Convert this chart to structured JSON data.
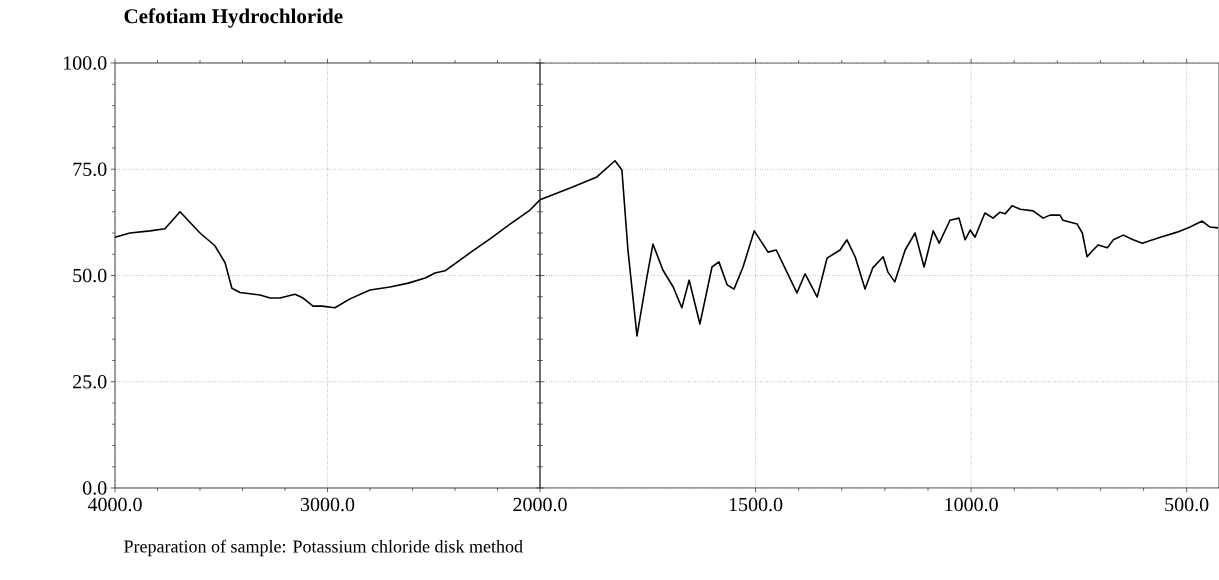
{
  "chart_data": [
    {
      "type": "line",
      "title": "Cefotiam Hydrochloride",
      "annotations": [
        "Preparation of sample: Potassium chloride disk method"
      ],
      "xlim": [
        4000,
        2000
      ],
      "xticks": [
        {
          "value": 4000,
          "label": "4000.0"
        },
        {
          "value": 3000,
          "label": "3000.0"
        },
        {
          "value": 2000,
          "label": "2000.0"
        }
      ],
      "ylim": [
        0,
        100
      ],
      "yticks": [
        {
          "value": 0,
          "label": "0.0"
        },
        {
          "value": 25,
          "label": "25.0"
        },
        {
          "value": 50,
          "label": "50.0"
        },
        {
          "value": 75,
          "label": "75.0"
        },
        {
          "value": 100,
          "label": "100.0"
        }
      ],
      "grid": true,
      "marker": "none",
      "line_style": "solid",
      "series": [
        {
          "color": "#000000",
          "x": [
            4000,
            3930,
            3835,
            3765,
            3694,
            3600,
            3530,
            3482,
            3450,
            3412,
            3318,
            3270,
            3224,
            3153,
            3115,
            3068,
            3026,
            2965,
            2894,
            2800,
            2706,
            2620,
            2540,
            2494,
            2447,
            2330,
            2235,
            2141,
            2047,
            2000
          ],
          "values": [
            59,
            60,
            60.5,
            61,
            65,
            60,
            57,
            53,
            47,
            46,
            45.4,
            44.7,
            44.7,
            45.6,
            44.7,
            42.8,
            42.8,
            42.4,
            44.5,
            46.6,
            47.3,
            48.2,
            49.4,
            50.6,
            51.1,
            55.3,
            58.6,
            62.1,
            65.4,
            67.8
          ]
        }
      ]
    },
    {
      "type": "line",
      "xlim": [
        2000,
        425
      ],
      "xticks": [
        {
          "value": 1500,
          "label": "1500.0"
        },
        {
          "value": 1000,
          "label": "1000.0"
        },
        {
          "value": 500,
          "label": "500.0"
        }
      ],
      "ylim": [
        0,
        100
      ],
      "yticks": [
        0,
        25,
        50,
        75,
        100
      ],
      "tick_labels": "x",
      "grid": true,
      "marker": "none",
      "line_style": "solid",
      "series": [
        {
          "color": "#000000",
          "x": [
            2000,
            1930,
            1868,
            1826,
            1810,
            1796,
            1775,
            1752,
            1738,
            1715,
            1691,
            1671,
            1654,
            1629,
            1601,
            1585,
            1566,
            1550,
            1529,
            1503,
            1471,
            1452,
            1404,
            1385,
            1357,
            1334,
            1304,
            1288,
            1269,
            1246,
            1228,
            1204,
            1193,
            1177,
            1153,
            1130,
            1109,
            1088,
            1074,
            1049,
            1028,
            1014,
            1002,
            991,
            968,
            949,
            933,
            921,
            905,
            886,
            856,
            833,
            817,
            794,
            787,
            754,
            742,
            731,
            717,
            705,
            684,
            670,
            647,
            624,
            603,
            561,
            522,
            492,
            464,
            446,
            427
          ],
          "values": [
            67.8,
            70.6,
            73.2,
            77,
            74.8,
            56,
            35.8,
            49.6,
            57.4,
            51.3,
            47.3,
            42.4,
            48.9,
            38.6,
            52,
            53.2,
            47.8,
            46.8,
            52,
            60.5,
            55.5,
            56,
            45.9,
            50.4,
            44.9,
            54.1,
            56,
            58.4,
            54.4,
            46.8,
            51.8,
            54.4,
            50.8,
            48.5,
            56,
            60,
            52,
            60.5,
            57.6,
            63,
            63.5,
            58.4,
            60.7,
            59,
            64.7,
            63.5,
            64.9,
            64.5,
            66.4,
            65.6,
            65.2,
            63.5,
            64.2,
            64.2,
            63,
            62.1,
            60,
            54.4,
            56,
            57.2,
            56.5,
            58.4,
            59.5,
            58.4,
            57.6,
            59,
            60.2,
            61.4,
            62.8,
            61.4,
            61.2
          ]
        }
      ]
    }
  ]
}
